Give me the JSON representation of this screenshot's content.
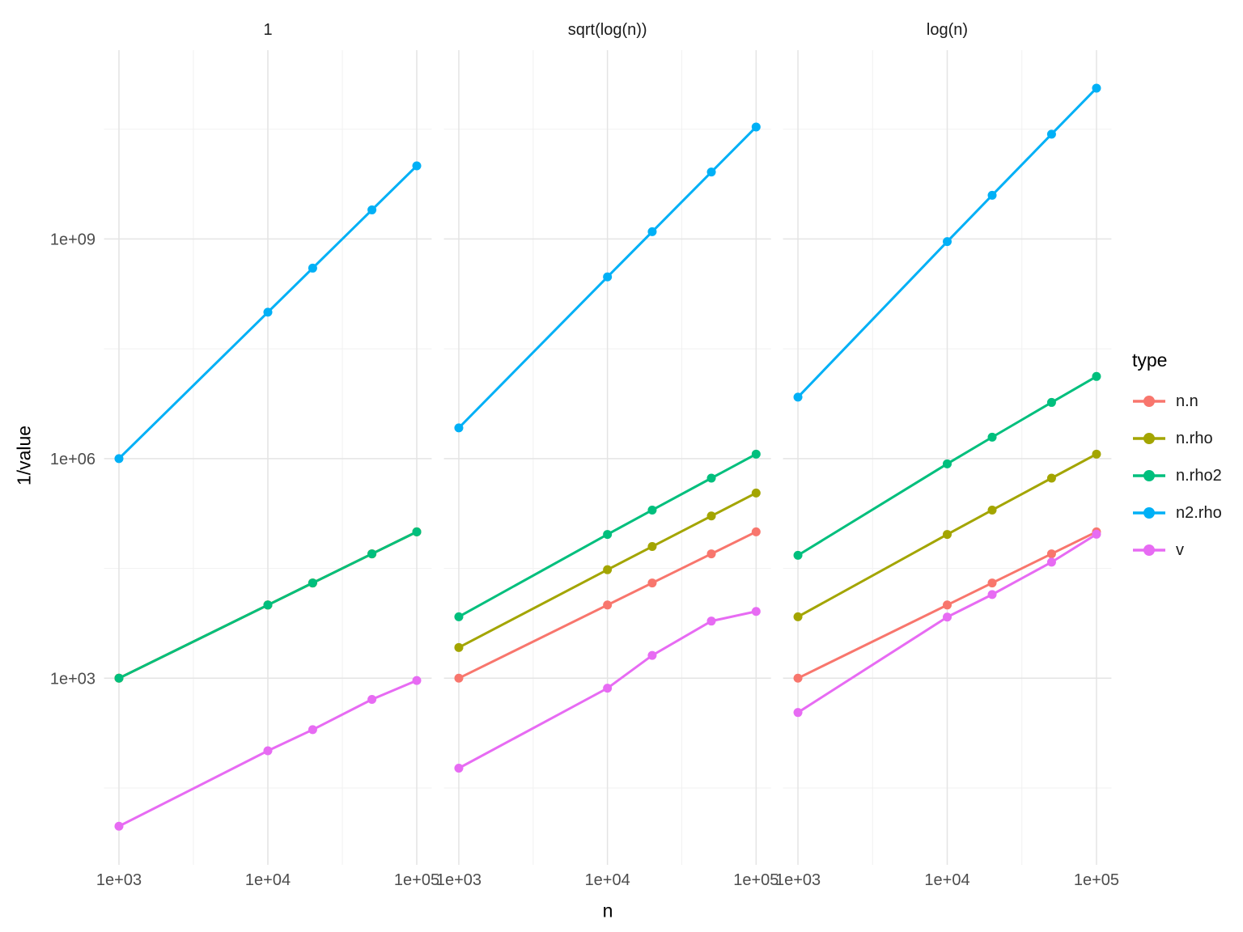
{
  "y_axis": {
    "label": "1/value",
    "ticks": [
      {
        "label": "1e+03",
        "value": 1000
      },
      {
        "label": "1e+06",
        "value": 1000000
      },
      {
        "label": "1e+09",
        "value": 1000000000
      }
    ]
  },
  "x_axis": {
    "label": "n",
    "ticks": [
      {
        "label": "1e+03",
        "value": 1000
      },
      {
        "label": "1e+04",
        "value": 10000
      },
      {
        "label": "1e+05",
        "value": 100000
      }
    ]
  },
  "legend": {
    "title": "type",
    "position": "right",
    "items": [
      {
        "label": "n.n",
        "color": "#F8766D"
      },
      {
        "label": "n.rho",
        "color": "#A3A500"
      },
      {
        "label": "n.rho2",
        "color": "#00BF7D"
      },
      {
        "label": "n2.rho",
        "color": "#00B0F6"
      },
      {
        "label": "v",
        "color": "#E76BF3"
      }
    ]
  },
  "chart_data": [
    {
      "type": "line",
      "facet": "1",
      "x": [
        1000,
        10000,
        20000,
        50000,
        100000
      ],
      "series": [
        {
          "name": "n.n",
          "color": "#F8766D",
          "y": [
            1000,
            10000,
            20000,
            50000,
            100000
          ]
        },
        {
          "name": "n.rho",
          "color": "#A3A500",
          "y": [
            1000,
            10000,
            20000,
            50000,
            100000
          ]
        },
        {
          "name": "n.rho2",
          "color": "#00BF7D",
          "y": [
            1000,
            10000,
            20000,
            50000,
            100000
          ]
        },
        {
          "name": "n2.rho",
          "color": "#00B0F6",
          "y": [
            1000000,
            100000000,
            400000000,
            2500000000,
            10000000000
          ]
        },
        {
          "name": "v",
          "color": "#E76BF3",
          "y": [
            9.5,
            102,
            198,
            513,
            930
          ]
        }
      ]
    },
    {
      "type": "line",
      "facet": "sqrt(log(n))",
      "x": [
        1000,
        10000,
        20000,
        50000,
        100000
      ],
      "series": [
        {
          "name": "n.n",
          "color": "#F8766D",
          "y": [
            1000,
            10000,
            20000,
            50000,
            100000
          ]
        },
        {
          "name": "n.rho",
          "color": "#A3A500",
          "y": [
            2628,
            30349,
            62940,
            164468,
            339306
          ]
        },
        {
          "name": "n.rho2",
          "color": "#00BF7D",
          "y": [
            6908,
            92103,
            198070,
            540989,
            1151293
          ]
        },
        {
          "name": "n2.rho",
          "color": "#00B0F6",
          "y": [
            2628000,
            303490000,
            1258800000,
            8223400000,
            33931000000
          ]
        },
        {
          "name": "v",
          "color": "#E76BF3",
          "y": [
            59,
            730,
            2050,
            6030,
            8170
          ]
        }
      ]
    },
    {
      "type": "line",
      "facet": "log(n)",
      "x": [
        1000,
        10000,
        20000,
        50000,
        100000
      ],
      "series": [
        {
          "name": "n.n",
          "color": "#F8766D",
          "y": [
            1000,
            10000,
            20000,
            50000,
            100000
          ]
        },
        {
          "name": "n.rho",
          "color": "#A3A500",
          "y": [
            6908,
            92103,
            198070,
            540989,
            1151293
          ]
        },
        {
          "name": "n.rho2",
          "color": "#00BF7D",
          "y": [
            47717,
            848304,
            1961482,
            5853407,
            13255211
          ]
        },
        {
          "name": "n2.rho",
          "color": "#00B0F6",
          "y": [
            6908000,
            921030000,
            3961400000,
            27050000000,
            115130000000
          ]
        },
        {
          "name": "v",
          "color": "#E76BF3",
          "y": [
            340,
            6840,
            13900,
            38500,
            92700
          ]
        }
      ]
    }
  ],
  "axes_meta": {
    "x_scale": "log10",
    "y_scale": "log10",
    "x_domain_log10": [
      2.9,
      5.1
    ],
    "y_domain_log10": [
      0.45,
      11.58
    ],
    "x_major_log10": [
      3,
      4,
      5
    ],
    "x_minor_log10": [
      3.5,
      4.5
    ],
    "y_major_log10": [
      3,
      6,
      9
    ],
    "y_minor_log10": [
      1.5,
      4.5,
      7.5,
      10.5
    ],
    "grid": "on",
    "major_grid_color": "#E4E4E4",
    "minor_grid_color": "#F1F1F1",
    "tick_text_color": "#4D4D4D",
    "strip_text_color": "#1A1A1A"
  }
}
